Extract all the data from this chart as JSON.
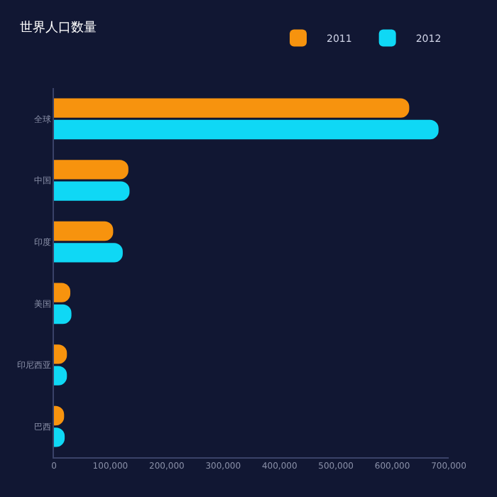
{
  "chart_data": {
    "type": "bar",
    "orientation": "horizontal",
    "title": "世界人口数量",
    "categories": [
      "全球",
      "中国",
      "印度",
      "美国",
      "印尼西亚",
      "巴西"
    ],
    "series": [
      {
        "name": "2011",
        "color": "#f7930e",
        "values": [
          630000,
          132000,
          105000,
          29000,
          23000,
          18000
        ]
      },
      {
        "name": "2012",
        "color": "#0fd8f5",
        "values": [
          682000,
          134000,
          122000,
          31000,
          23000,
          19000
        ]
      }
    ],
    "xlim": [
      0,
      700000
    ],
    "xticks": [
      0,
      {
        "value": 100000,
        "label": "100,000"
      },
      {
        "value": 200000,
        "label": "200,000"
      },
      {
        "value": 300000,
        "label": "300,000"
      },
      {
        "value": 400000,
        "label": "400,000"
      },
      {
        "value": 500000,
        "label": "500,000"
      },
      {
        "value": 600000,
        "label": "600,000"
      },
      {
        "value": 700000,
        "label": "700,000"
      }
    ],
    "grid": false,
    "legend": "top right"
  }
}
